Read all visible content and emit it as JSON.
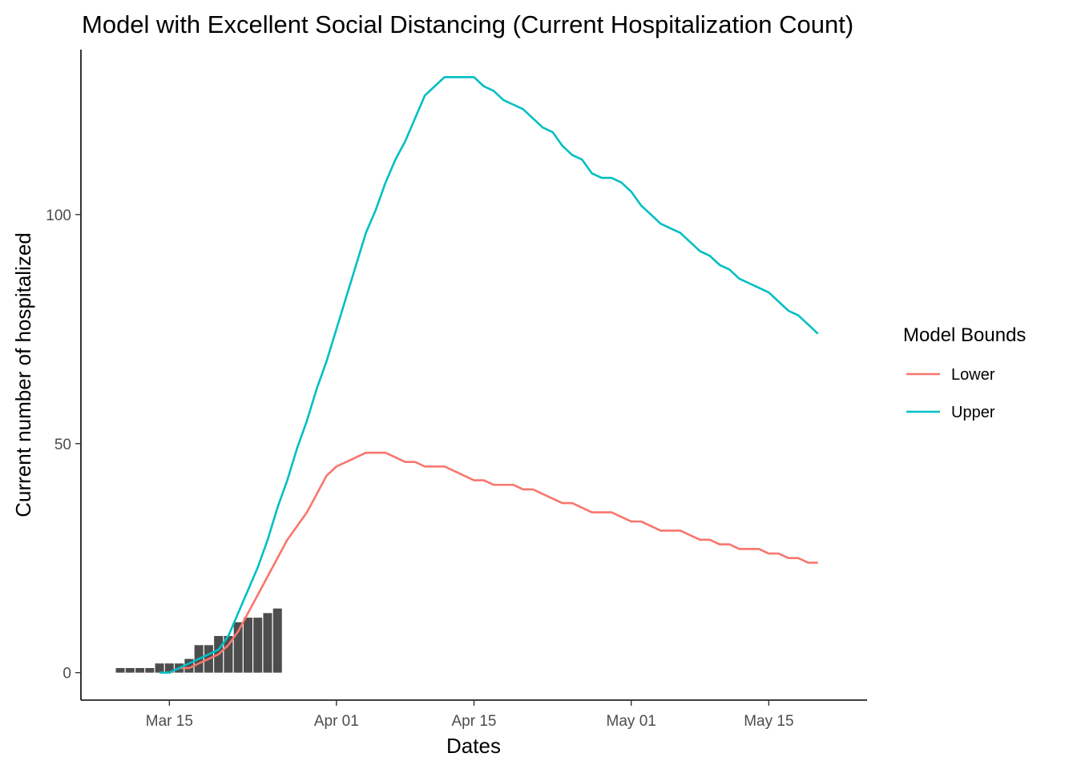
{
  "chart_data": {
    "type": "line",
    "title": "Model with Excellent Social Distancing (Current Hospitalization Count)",
    "xlabel": "Dates",
    "ylabel": "Current number of hospitalized",
    "x_ticks": [
      {
        "date": "2020-03-15",
        "label": "Mar 15"
      },
      {
        "date": "2020-04-01",
        "label": "Apr 01"
      },
      {
        "date": "2020-04-15",
        "label": "Apr 15"
      },
      {
        "date": "2020-05-01",
        "label": "May 01"
      },
      {
        "date": "2020-05-15",
        "label": "May 15"
      }
    ],
    "y_ticks": [
      0,
      50,
      100
    ],
    "xlim": [
      "2020-03-06",
      "2020-05-25"
    ],
    "ylim": [
      -6,
      136
    ],
    "grid": false,
    "legend": {
      "title": "Model Bounds",
      "position": "right",
      "entries": [
        {
          "label": "Lower",
          "color": "#F8766D"
        },
        {
          "label": "Upper",
          "color": "#00BFC4"
        }
      ]
    },
    "bars": {
      "color": "#4D4D4D",
      "data": [
        [
          "2020-03-10",
          1
        ],
        [
          "2020-03-11",
          1
        ],
        [
          "2020-03-12",
          1
        ],
        [
          "2020-03-13",
          1
        ],
        [
          "2020-03-14",
          2
        ],
        [
          "2020-03-15",
          2
        ],
        [
          "2020-03-16",
          2
        ],
        [
          "2020-03-17",
          3
        ],
        [
          "2020-03-18",
          6
        ],
        [
          "2020-03-19",
          6
        ],
        [
          "2020-03-20",
          8
        ],
        [
          "2020-03-21",
          8
        ],
        [
          "2020-03-22",
          11
        ],
        [
          "2020-03-23",
          12
        ],
        [
          "2020-03-24",
          12
        ],
        [
          "2020-03-25",
          13
        ],
        [
          "2020-03-26",
          14
        ]
      ]
    },
    "series": [
      {
        "name": "Lower",
        "color": "#F8766D",
        "points": [
          [
            "2020-03-14",
            0
          ],
          [
            "2020-03-15",
            0
          ],
          [
            "2020-03-16",
            1
          ],
          [
            "2020-03-17",
            1
          ],
          [
            "2020-03-18",
            2
          ],
          [
            "2020-03-19",
            3
          ],
          [
            "2020-03-20",
            4
          ],
          [
            "2020-03-21",
            6
          ],
          [
            "2020-03-22",
            9
          ],
          [
            "2020-03-23",
            13
          ],
          [
            "2020-03-24",
            17
          ],
          [
            "2020-03-25",
            21
          ],
          [
            "2020-03-26",
            25
          ],
          [
            "2020-03-27",
            29
          ],
          [
            "2020-03-28",
            32
          ],
          [
            "2020-03-29",
            35
          ],
          [
            "2020-03-30",
            39
          ],
          [
            "2020-03-31",
            43
          ],
          [
            "2020-04-01",
            45
          ],
          [
            "2020-04-02",
            46
          ],
          [
            "2020-04-03",
            47
          ],
          [
            "2020-04-04",
            48
          ],
          [
            "2020-04-05",
            48
          ],
          [
            "2020-04-06",
            48
          ],
          [
            "2020-04-07",
            47
          ],
          [
            "2020-04-08",
            46
          ],
          [
            "2020-04-09",
            46
          ],
          [
            "2020-04-10",
            45
          ],
          [
            "2020-04-11",
            45
          ],
          [
            "2020-04-12",
            45
          ],
          [
            "2020-04-13",
            44
          ],
          [
            "2020-04-14",
            43
          ],
          [
            "2020-04-15",
            42
          ],
          [
            "2020-04-16",
            42
          ],
          [
            "2020-04-17",
            41
          ],
          [
            "2020-04-18",
            41
          ],
          [
            "2020-04-19",
            41
          ],
          [
            "2020-04-20",
            40
          ],
          [
            "2020-04-21",
            40
          ],
          [
            "2020-04-22",
            39
          ],
          [
            "2020-04-23",
            38
          ],
          [
            "2020-04-24",
            37
          ],
          [
            "2020-04-25",
            37
          ],
          [
            "2020-04-26",
            36
          ],
          [
            "2020-04-27",
            35
          ],
          [
            "2020-04-28",
            35
          ],
          [
            "2020-04-29",
            35
          ],
          [
            "2020-04-30",
            34
          ],
          [
            "2020-05-01",
            33
          ],
          [
            "2020-05-02",
            33
          ],
          [
            "2020-05-03",
            32
          ],
          [
            "2020-05-04",
            31
          ],
          [
            "2020-05-05",
            31
          ],
          [
            "2020-05-06",
            31
          ],
          [
            "2020-05-07",
            30
          ],
          [
            "2020-05-08",
            29
          ],
          [
            "2020-05-09",
            29
          ],
          [
            "2020-05-10",
            28
          ],
          [
            "2020-05-11",
            28
          ],
          [
            "2020-05-12",
            27
          ],
          [
            "2020-05-13",
            27
          ],
          [
            "2020-05-14",
            27
          ],
          [
            "2020-05-15",
            26
          ],
          [
            "2020-05-16",
            26
          ],
          [
            "2020-05-17",
            25
          ],
          [
            "2020-05-18",
            25
          ],
          [
            "2020-05-19",
            24
          ],
          [
            "2020-05-20",
            24
          ]
        ]
      },
      {
        "name": "Upper",
        "color": "#00BFC4",
        "points": [
          [
            "2020-03-14",
            0
          ],
          [
            "2020-03-15",
            0
          ],
          [
            "2020-03-16",
            1
          ],
          [
            "2020-03-17",
            2
          ],
          [
            "2020-03-18",
            3
          ],
          [
            "2020-03-19",
            4
          ],
          [
            "2020-03-20",
            5
          ],
          [
            "2020-03-21",
            8
          ],
          [
            "2020-03-22",
            13
          ],
          [
            "2020-03-23",
            18
          ],
          [
            "2020-03-24",
            23
          ],
          [
            "2020-03-25",
            29
          ],
          [
            "2020-03-26",
            36
          ],
          [
            "2020-03-27",
            42
          ],
          [
            "2020-03-28",
            49
          ],
          [
            "2020-03-29",
            55
          ],
          [
            "2020-03-30",
            62
          ],
          [
            "2020-03-31",
            68
          ],
          [
            "2020-04-01",
            75
          ],
          [
            "2020-04-02",
            82
          ],
          [
            "2020-04-03",
            89
          ],
          [
            "2020-04-04",
            96
          ],
          [
            "2020-04-05",
            101
          ],
          [
            "2020-04-06",
            107
          ],
          [
            "2020-04-07",
            112
          ],
          [
            "2020-04-08",
            116
          ],
          [
            "2020-04-09",
            121
          ],
          [
            "2020-04-10",
            126
          ],
          [
            "2020-04-11",
            128
          ],
          [
            "2020-04-12",
            130
          ],
          [
            "2020-04-13",
            130
          ],
          [
            "2020-04-14",
            130
          ],
          [
            "2020-04-15",
            130
          ],
          [
            "2020-04-16",
            128
          ],
          [
            "2020-04-17",
            127
          ],
          [
            "2020-04-18",
            125
          ],
          [
            "2020-04-19",
            124
          ],
          [
            "2020-04-20",
            123
          ],
          [
            "2020-04-21",
            121
          ],
          [
            "2020-04-22",
            119
          ],
          [
            "2020-04-23",
            118
          ],
          [
            "2020-04-24",
            115
          ],
          [
            "2020-04-25",
            113
          ],
          [
            "2020-04-26",
            112
          ],
          [
            "2020-04-27",
            109
          ],
          [
            "2020-04-28",
            108
          ],
          [
            "2020-04-29",
            108
          ],
          [
            "2020-04-30",
            107
          ],
          [
            "2020-05-01",
            105
          ],
          [
            "2020-05-02",
            102
          ],
          [
            "2020-05-03",
            100
          ],
          [
            "2020-05-04",
            98
          ],
          [
            "2020-05-05",
            97
          ],
          [
            "2020-05-06",
            96
          ],
          [
            "2020-05-07",
            94
          ],
          [
            "2020-05-08",
            92
          ],
          [
            "2020-05-09",
            91
          ],
          [
            "2020-05-10",
            89
          ],
          [
            "2020-05-11",
            88
          ],
          [
            "2020-05-12",
            86
          ],
          [
            "2020-05-13",
            85
          ],
          [
            "2020-05-14",
            84
          ],
          [
            "2020-05-15",
            83
          ],
          [
            "2020-05-16",
            81
          ],
          [
            "2020-05-17",
            79
          ],
          [
            "2020-05-18",
            78
          ],
          [
            "2020-05-19",
            76
          ],
          [
            "2020-05-20",
            74
          ]
        ]
      }
    ]
  }
}
